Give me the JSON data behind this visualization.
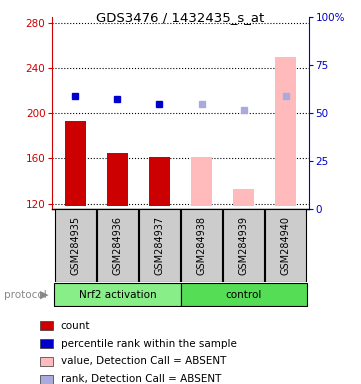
{
  "title": "GDS3476 / 1432435_s_at",
  "samples": [
    "GSM284935",
    "GSM284936",
    "GSM284937",
    "GSM284938",
    "GSM284939",
    "GSM284940"
  ],
  "bar_values": [
    193,
    165,
    161,
    161,
    133,
    250
  ],
  "bar_bottom": 118,
  "bar_colors": [
    "#cc0000",
    "#cc0000",
    "#cc0000",
    "#ffbbbb",
    "#ffbbbb",
    "#ffbbbb"
  ],
  "square_values": [
    215,
    213,
    208,
    208,
    203,
    215
  ],
  "square_colors": [
    "#0000cc",
    "#0000cc",
    "#0000cc",
    "#aaaadd",
    "#aaaadd",
    "#aaaadd"
  ],
  "ylim_left": [
    115,
    285
  ],
  "ylim_right": [
    0,
    100
  ],
  "yticks_left": [
    120,
    160,
    200,
    240,
    280
  ],
  "yticks_right": [
    0,
    25,
    50,
    75,
    100
  ],
  "ytick_labels_right": [
    "0",
    "25",
    "50",
    "75",
    "100%"
  ],
  "left_axis_color": "#cc0000",
  "right_axis_color": "#0000cc",
  "group1_label": "Nrf2 activation",
  "group2_label": "control",
  "group1_color": "#88ee88",
  "group2_color": "#55dd55",
  "protocol_text": "protocol",
  "legend_items": [
    {
      "color": "#cc0000",
      "label": "count"
    },
    {
      "color": "#0000cc",
      "label": "percentile rank within the sample"
    },
    {
      "color": "#ffbbbb",
      "label": "value, Detection Call = ABSENT"
    },
    {
      "color": "#aaaadd",
      "label": "rank, Detection Call = ABSENT"
    }
  ]
}
